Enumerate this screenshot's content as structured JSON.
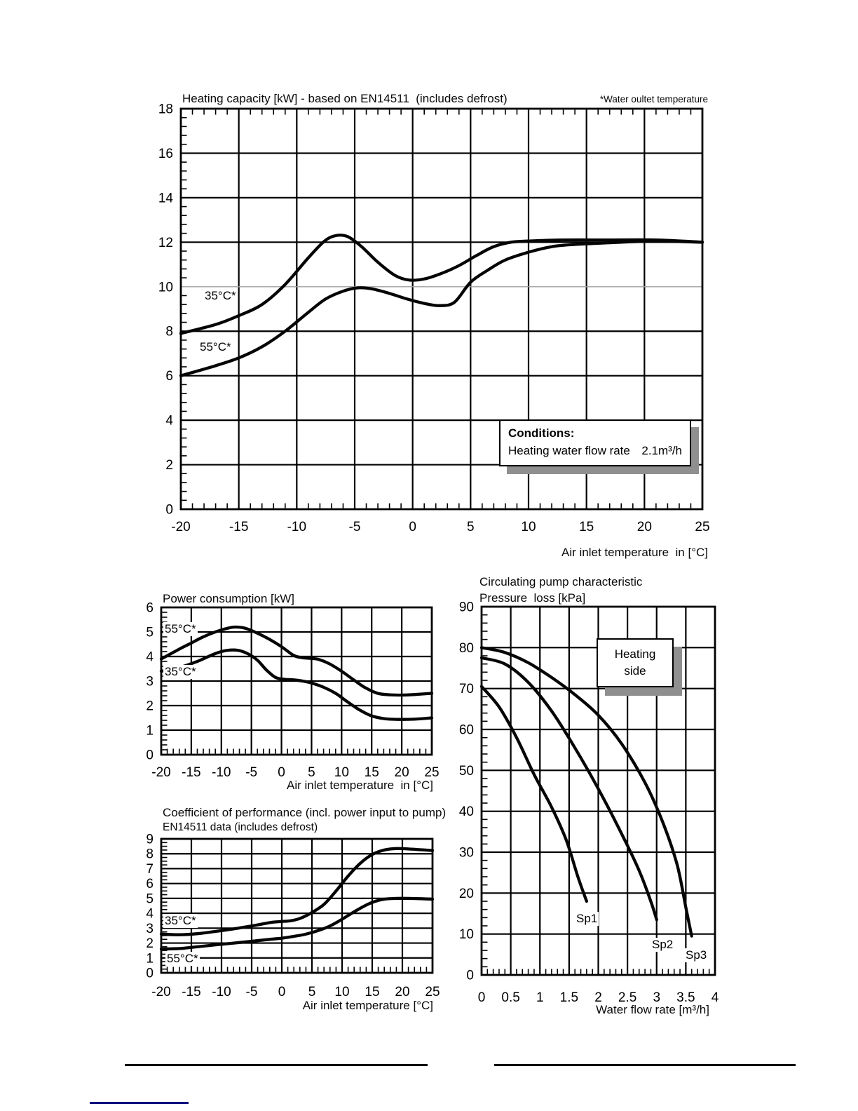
{
  "page": {
    "background": "#ffffff"
  },
  "colors": {
    "ink": "#000000",
    "grid": "#000000",
    "light_grid": "#9f9f9f",
    "box_shadow": "#8f8f8f",
    "link_rule": "#10107e"
  },
  "annotations": {
    "conditions": {
      "title": "Conditions:",
      "item": "Heating water flow rate",
      "value": "2.1m³/h"
    },
    "heating_side": {
      "line1": "Heating",
      "line2": "side"
    }
  },
  "chart_data": [
    {
      "id": "heating-capacity",
      "type": "line",
      "title": "Heating capacity [kW] - based on EN14511  (includes defrost)",
      "note": "*Water oultet temperature",
      "xlabel": "Air inlet temperature  in [°C]",
      "xlim": [
        -20,
        25
      ],
      "ylim": [
        0,
        18
      ],
      "xticks": [
        -20,
        -15,
        -10,
        -5,
        0,
        5,
        10,
        15,
        20,
        25
      ],
      "yticks": [
        0,
        2,
        4,
        6,
        8,
        10,
        12,
        14,
        16,
        18
      ],
      "x_minor": 1,
      "y_minor": 0.4,
      "top_minor_ticks": true,
      "grid": true,
      "light_ylines": [
        10
      ],
      "series": [
        {
          "name": "35°C*",
          "points": [
            [
              -20,
              7.9
            ],
            [
              -17,
              8.3
            ],
            [
              -15,
              8.7
            ],
            [
              -13,
              9.2
            ],
            [
              -11,
              10.1
            ],
            [
              -9,
              11.3
            ],
            [
              -7.6,
              12.05
            ],
            [
              -6.6,
              12.3
            ],
            [
              -5.6,
              12.25
            ],
            [
              -4.4,
              11.8
            ],
            [
              -3,
              11.1
            ],
            [
              -1.5,
              10.5
            ],
            [
              -0.3,
              10.3
            ],
            [
              1,
              10.35
            ],
            [
              2.5,
              10.6
            ],
            [
              4,
              10.95
            ],
            [
              5.5,
              11.4
            ],
            [
              7,
              11.8
            ],
            [
              8.5,
              12.0
            ],
            [
              10,
              12.05
            ],
            [
              13,
              12.1
            ],
            [
              17,
              12.1
            ],
            [
              21,
              12.1
            ],
            [
              25,
              12.0
            ]
          ]
        },
        {
          "name": "55°C*",
          "points": [
            [
              -20,
              6.0
            ],
            [
              -17,
              6.45
            ],
            [
              -15,
              6.8
            ],
            [
              -13,
              7.3
            ],
            [
              -11,
              8.0
            ],
            [
              -9,
              8.85
            ],
            [
              -7.5,
              9.45
            ],
            [
              -6,
              9.8
            ],
            [
              -4.7,
              9.95
            ],
            [
              -3.5,
              9.9
            ],
            [
              -2,
              9.7
            ],
            [
              -0.5,
              9.45
            ],
            [
              1,
              9.25
            ],
            [
              2.3,
              9.15
            ],
            [
              3.6,
              9.3
            ],
            [
              5,
              10.2
            ],
            [
              6.5,
              10.75
            ],
            [
              8,
              11.2
            ],
            [
              10,
              11.55
            ],
            [
              12,
              11.8
            ],
            [
              14,
              11.9
            ],
            [
              16,
              11.95
            ],
            [
              18,
              12.0
            ],
            [
              21,
              12.05
            ],
            [
              25,
              12.0
            ]
          ]
        }
      ]
    },
    {
      "id": "power-consumption",
      "type": "line",
      "title": "Power consumption [kW]",
      "xlabel": "Air inlet temperature  in [°C]",
      "xlim": [
        -20,
        25
      ],
      "ylim": [
        0,
        6
      ],
      "xticks": [
        -20,
        -15,
        -10,
        -5,
        0,
        5,
        10,
        15,
        20,
        25
      ],
      "yticks": [
        0,
        1,
        2,
        3,
        4,
        5,
        6
      ],
      "x_minor": 1,
      "y_minor": 0.2,
      "grid": true,
      "series": [
        {
          "name": "55°C*",
          "points": [
            [
              -20,
              3.9
            ],
            [
              -17,
              4.3
            ],
            [
              -15,
              4.55
            ],
            [
              -13,
              4.8
            ],
            [
              -11,
              5.0
            ],
            [
              -9,
              5.15
            ],
            [
              -7.7,
              5.2
            ],
            [
              -6,
              5.15
            ],
            [
              -4,
              4.95
            ],
            [
              -2,
              4.7
            ],
            [
              0,
              4.4
            ],
            [
              2,
              4.05
            ],
            [
              3.5,
              3.95
            ],
            [
              5,
              3.92
            ],
            [
              6.2,
              3.88
            ],
            [
              8,
              3.7
            ],
            [
              10,
              3.4
            ],
            [
              12,
              3.05
            ],
            [
              14,
              2.72
            ],
            [
              16,
              2.5
            ],
            [
              18,
              2.44
            ],
            [
              20,
              2.43
            ],
            [
              22,
              2.45
            ],
            [
              25,
              2.5
            ]
          ]
        },
        {
          "name": "35°C*",
          "points": [
            [
              -20,
              3.4
            ],
            [
              -17,
              3.55
            ],
            [
              -14,
              3.8
            ],
            [
              -11,
              4.12
            ],
            [
              -9,
              4.25
            ],
            [
              -7.2,
              4.25
            ],
            [
              -5.5,
              4.1
            ],
            [
              -4,
              3.85
            ],
            [
              -2.5,
              3.45
            ],
            [
              -1,
              3.15
            ],
            [
              0.5,
              3.07
            ],
            [
              2,
              3.05
            ],
            [
              3.5,
              3.0
            ],
            [
              5,
              2.92
            ],
            [
              7,
              2.75
            ],
            [
              9,
              2.5
            ],
            [
              11,
              2.15
            ],
            [
              13,
              1.82
            ],
            [
              15,
              1.58
            ],
            [
              17,
              1.47
            ],
            [
              19,
              1.44
            ],
            [
              21,
              1.44
            ],
            [
              23,
              1.46
            ],
            [
              25,
              1.5
            ]
          ]
        }
      ]
    },
    {
      "id": "cop",
      "type": "line",
      "title": "Coefficient of performance (incl. power input to pump)",
      "subtitle": "EN14511 data (includes defrost)",
      "xlabel": "Air inlet temperature [°C]",
      "xlim": [
        -20,
        25
      ],
      "ylim": [
        0,
        9
      ],
      "xticks": [
        -20,
        -15,
        -10,
        -5,
        0,
        5,
        10,
        15,
        20,
        25
      ],
      "yticks": [
        0,
        1,
        2,
        3,
        4,
        5,
        6,
        7,
        8,
        9
      ],
      "x_minor": 1,
      "y_minor": 0.25,
      "grid": true,
      "series": [
        {
          "name": "35°C*",
          "points": [
            [
              -20,
              2.6
            ],
            [
              -17,
              2.56
            ],
            [
              -14,
              2.63
            ],
            [
              -11,
              2.78
            ],
            [
              -8,
              2.95
            ],
            [
              -5,
              3.15
            ],
            [
              -3,
              3.3
            ],
            [
              -1.5,
              3.4
            ],
            [
              0,
              3.45
            ],
            [
              1.5,
              3.5
            ],
            [
              3,
              3.65
            ],
            [
              5,
              4.05
            ],
            [
              7,
              4.6
            ],
            [
              9,
              5.5
            ],
            [
              11,
              6.5
            ],
            [
              13,
              7.35
            ],
            [
              15,
              7.95
            ],
            [
              17,
              8.25
            ],
            [
              19,
              8.35
            ],
            [
              21,
              8.32
            ],
            [
              23,
              8.27
            ],
            [
              25,
              8.22
            ]
          ]
        },
        {
          "name": "55°C*",
          "points": [
            [
              -20,
              1.6
            ],
            [
              -17,
              1.63
            ],
            [
              -14,
              1.75
            ],
            [
              -11,
              1.88
            ],
            [
              -8,
              2.0
            ],
            [
              -5,
              2.12
            ],
            [
              -2,
              2.25
            ],
            [
              0,
              2.33
            ],
            [
              2,
              2.45
            ],
            [
              4,
              2.6
            ],
            [
              6,
              2.83
            ],
            [
              8,
              3.15
            ],
            [
              10,
              3.6
            ],
            [
              12,
              4.1
            ],
            [
              14,
              4.55
            ],
            [
              15.5,
              4.8
            ],
            [
              17,
              4.95
            ],
            [
              19,
              5.0
            ],
            [
              21,
              5.0
            ],
            [
              23,
              4.98
            ],
            [
              25,
              4.95
            ]
          ]
        }
      ]
    },
    {
      "id": "pump-characteristic",
      "type": "line",
      "title": "Circulating pump characteristic",
      "subtitle": "Pressure  loss [kPa]",
      "xlabel": "Water flow rate [m³/h]",
      "xlim": [
        0,
        4
      ],
      "ylim": [
        0,
        90
      ],
      "xticks": [
        0,
        0.5,
        1,
        1.5,
        2,
        2.5,
        3,
        3.5,
        4
      ],
      "yticks": [
        0,
        10,
        20,
        30,
        40,
        50,
        60,
        70,
        80,
        90
      ],
      "x_minor": 0.1,
      "y_minor": 2,
      "grid": true,
      "series": [
        {
          "name": "Sp1",
          "points": [
            [
              0,
              70.5
            ],
            [
              0.3,
              65.5
            ],
            [
              0.6,
              58
            ],
            [
              0.9,
              49
            ],
            [
              1.2,
              41
            ],
            [
              1.45,
              33
            ],
            [
              1.65,
              24
            ],
            [
              1.8,
              18
            ]
          ]
        },
        {
          "name": "Sp2",
          "points": [
            [
              0,
              77.5
            ],
            [
              0.4,
              76
            ],
            [
              0.8,
              71.5
            ],
            [
              1.2,
              64.5
            ],
            [
              1.6,
              55.5
            ],
            [
              2.0,
              45.5
            ],
            [
              2.4,
              34.5
            ],
            [
              2.7,
              25.5
            ],
            [
              2.9,
              18
            ],
            [
              3.0,
              13.5
            ]
          ]
        },
        {
          "name": "Sp3",
          "points": [
            [
              0,
              80
            ],
            [
              0.4,
              78.8
            ],
            [
              0.8,
              76.3
            ],
            [
              1.2,
              72.7
            ],
            [
              1.6,
              68.5
            ],
            [
              2.0,
              63.5
            ],
            [
              2.4,
              56.5
            ],
            [
              2.8,
              47
            ],
            [
              3.1,
              37.5
            ],
            [
              3.35,
              27
            ],
            [
              3.5,
              16.5
            ],
            [
              3.6,
              9.5
            ]
          ]
        }
      ]
    }
  ]
}
